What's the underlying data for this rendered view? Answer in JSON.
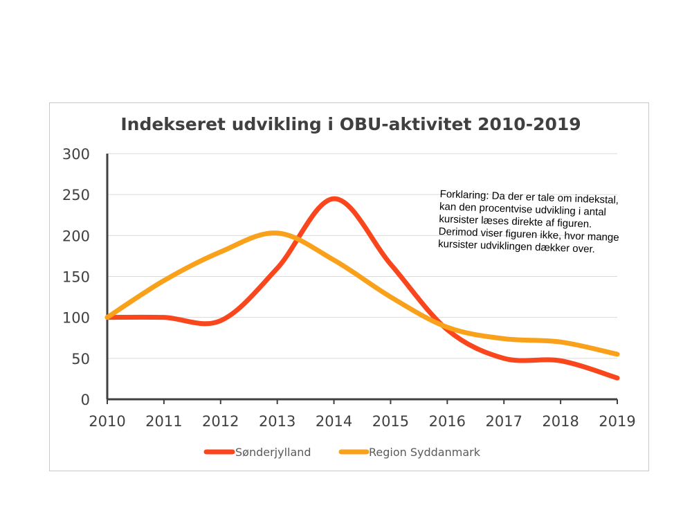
{
  "chart_data": {
    "type": "line",
    "title": "Indekseret udvikling i OBU-aktivitet 2010-2019",
    "x": [
      2010,
      2011,
      2012,
      2013,
      2014,
      2015,
      2016,
      2017,
      2018,
      2019
    ],
    "x_tick_labels": [
      "2010",
      "2011",
      "2012",
      "2013",
      "2014",
      "2015",
      "2016",
      "2017",
      "2018",
      "2019"
    ],
    "ylim": [
      0,
      300
    ],
    "y_ticks": [
      0,
      50,
      100,
      150,
      200,
      250,
      300
    ],
    "y_tick_labels": [
      "0",
      "50",
      "100",
      "150",
      "200",
      "250",
      "300"
    ],
    "grid": "horizontal",
    "legend_position": "bottom",
    "series": [
      {
        "name": "Sønderjylland",
        "color": "#f9461c",
        "values": [
          100,
          100,
          96,
          160,
          245,
          165,
          85,
          50,
          47,
          26
        ]
      },
      {
        "name": "Region Syddanmark",
        "color": "#f9a11b",
        "values": [
          100,
          145,
          180,
          203,
          170,
          125,
          88,
          74,
          70,
          55
        ]
      }
    ],
    "annotation": "Forklaring: Da der er tale om indekstal, kan den procentvise udvikling i antal kursister læses direkte af figuren. Derimod viser figuren ikke, hvor mange kursister udviklingen dækker over."
  }
}
